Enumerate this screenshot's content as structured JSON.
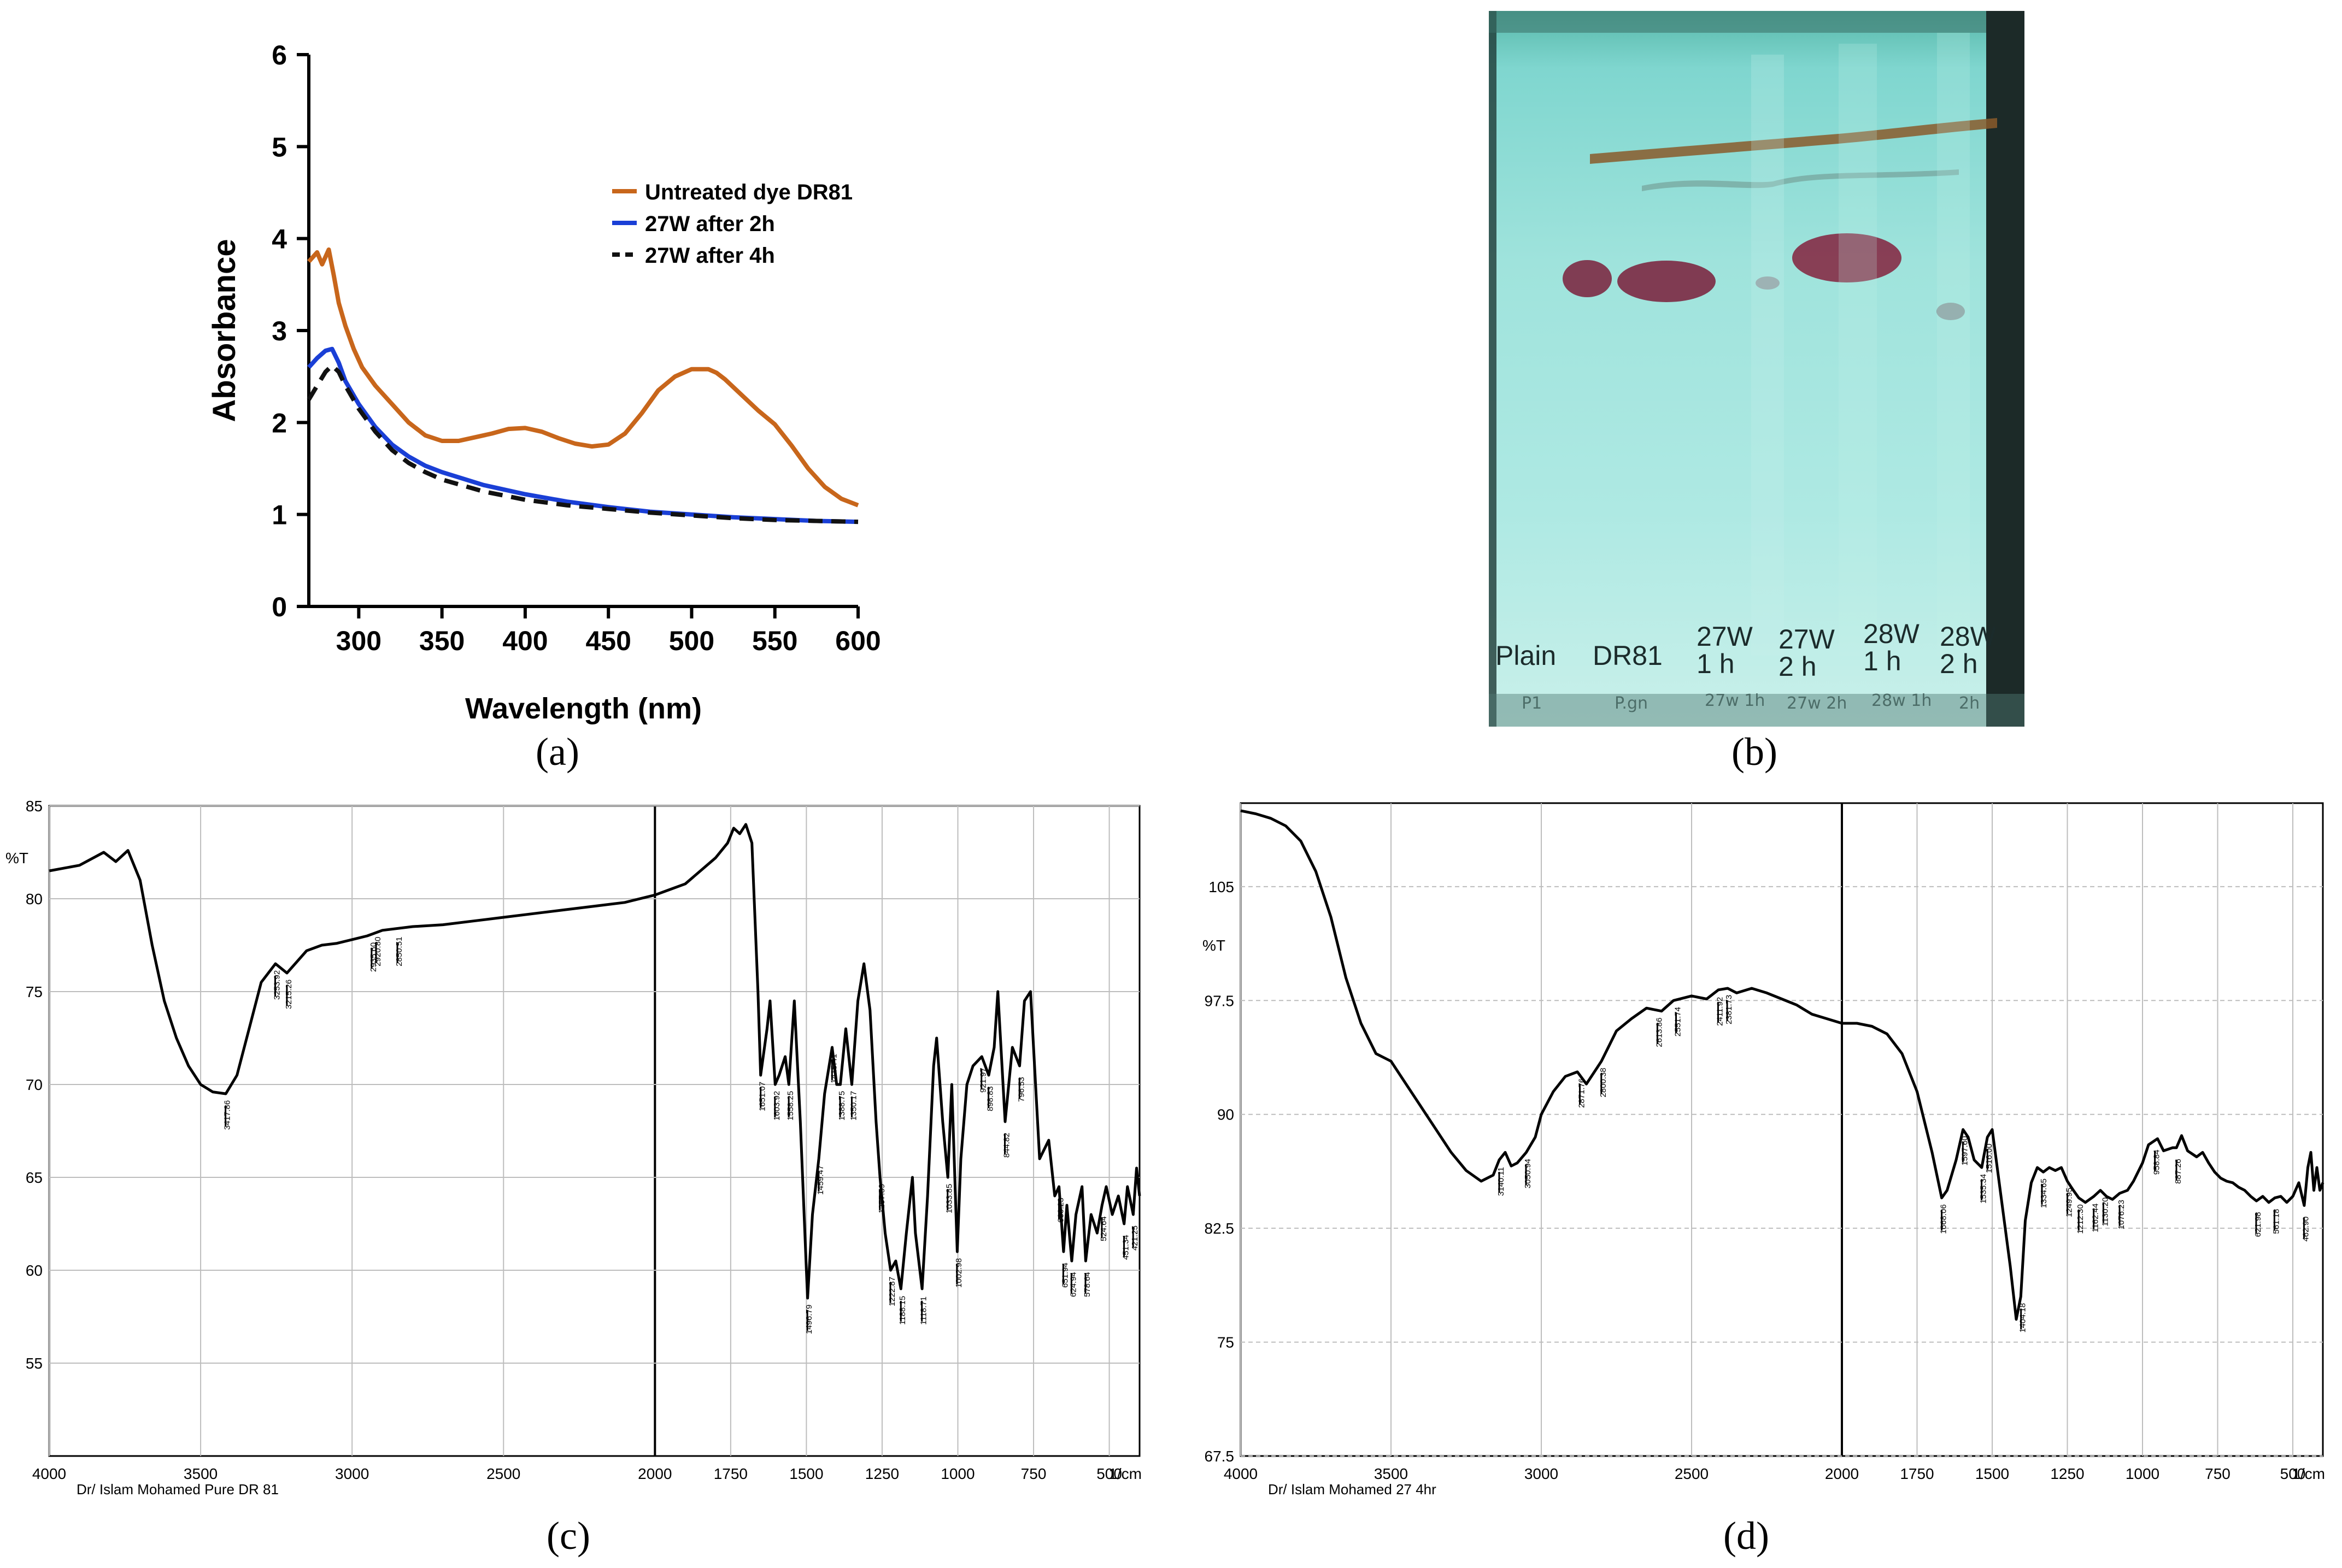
{
  "panel_a": {
    "caption": "(a)",
    "chart_data": {
      "type": "line",
      "xlabel": "Wavelength (nm)",
      "ylabel": "Absorbance",
      "xlim": [
        270,
        600
      ],
      "ylim": [
        0,
        6
      ],
      "xticks": [
        300,
        350,
        400,
        450,
        500,
        550,
        600
      ],
      "yticks": [
        0,
        1,
        2,
        3,
        4,
        5,
        6
      ],
      "legend_position": "top-right",
      "series": [
        {
          "name": "Untreated dye DR81",
          "color": "#c8661b",
          "dash": "solid",
          "x": [
            270,
            275,
            278,
            282,
            285,
            288,
            292,
            297,
            302,
            310,
            320,
            330,
            340,
            350,
            360,
            370,
            380,
            390,
            400,
            410,
            420,
            430,
            440,
            450,
            460,
            470,
            480,
            490,
            500,
            510,
            515,
            520,
            530,
            540,
            550,
            560,
            570,
            580,
            590,
            600
          ],
          "y": [
            3.75,
            3.85,
            3.72,
            3.88,
            3.6,
            3.3,
            3.05,
            2.8,
            2.6,
            2.4,
            2.2,
            2.0,
            1.86,
            1.8,
            1.8,
            1.84,
            1.88,
            1.93,
            1.94,
            1.9,
            1.83,
            1.77,
            1.74,
            1.76,
            1.88,
            2.1,
            2.35,
            2.5,
            2.58,
            2.58,
            2.54,
            2.47,
            2.3,
            2.13,
            1.98,
            1.75,
            1.5,
            1.3,
            1.17,
            1.1
          ]
        },
        {
          "name": "27W after 2h",
          "color": "#1a3fd6",
          "dash": "solid",
          "x": [
            270,
            275,
            280,
            284,
            288,
            292,
            300,
            310,
            320,
            330,
            340,
            350,
            375,
            400,
            425,
            450,
            475,
            500,
            525,
            550,
            575,
            600
          ],
          "y": [
            2.6,
            2.7,
            2.78,
            2.8,
            2.65,
            2.45,
            2.2,
            1.95,
            1.76,
            1.63,
            1.53,
            1.46,
            1.32,
            1.22,
            1.14,
            1.08,
            1.03,
            1.0,
            0.97,
            0.95,
            0.93,
            0.92
          ]
        },
        {
          "name": "27W after 4h",
          "color": "#111111",
          "dash": "dashed",
          "x": [
            270,
            275,
            280,
            284,
            288,
            292,
            300,
            310,
            320,
            330,
            340,
            350,
            375,
            400,
            425,
            450,
            475,
            500,
            525,
            550,
            575,
            600
          ],
          "y": [
            2.25,
            2.4,
            2.55,
            2.62,
            2.55,
            2.4,
            2.15,
            1.9,
            1.7,
            1.56,
            1.46,
            1.38,
            1.25,
            1.16,
            1.1,
            1.06,
            1.02,
            0.99,
            0.96,
            0.94,
            0.93,
            0.92
          ]
        }
      ]
    }
  },
  "panel_b": {
    "caption": "(b)",
    "lanes": [
      {
        "label": "Plain",
        "sub": "",
        "handwriting": "P1"
      },
      {
        "label": "DR81",
        "sub": "",
        "handwriting": "P.gn"
      },
      {
        "label": "27W",
        "sub": "1 h",
        "handwriting": "27w 1h"
      },
      {
        "label": "27W",
        "sub": "2 h",
        "handwriting": "27w 2h"
      },
      {
        "label": "28W",
        "sub": "1 h",
        "handwriting": "28w 1h"
      },
      {
        "label": "28W",
        "sub": "2 h",
        "handwriting": "2h"
      }
    ]
  },
  "panel_c": {
    "caption": "(c)",
    "chart_data": {
      "type": "line",
      "xlabel": "1/cm",
      "ylabel": "%T",
      "footer": "Dr/ Islam  Mohamed    Pure  DR 81",
      "x_reversed": true,
      "xlim": [
        4000,
        400
      ],
      "ylim": [
        50,
        85
      ],
      "xticks": [
        4000,
        3500,
        3000,
        2500,
        2000,
        1750,
        1500,
        1250,
        1000,
        750,
        500
      ],
      "yticks": [
        55,
        60,
        65,
        70,
        75,
        80,
        85
      ],
      "series": [
        {
          "name": "Pure DR 81",
          "x": [
            4000,
            3900,
            3820,
            3780,
            3740,
            3700,
            3660,
            3620,
            3580,
            3540,
            3500,
            3460,
            3417,
            3380,
            3340,
            3300,
            3253,
            3215,
            3150,
            3100,
            3050,
            3000,
            2950,
            2900,
            2800,
            2700,
            2600,
            2500,
            2400,
            2300,
            2200,
            2100,
            2000,
            1950,
            1900,
            1850,
            1800,
            1760,
            1740,
            1720,
            1700,
            1680,
            1660,
            1651,
            1630,
            1620,
            1603,
            1590,
            1570,
            1558,
            1540,
            1520,
            1500,
            1496,
            1480,
            1459,
            1440,
            1415,
            1400,
            1388,
            1370,
            1350,
            1330,
            1310,
            1290,
            1270,
            1257,
            1240,
            1222,
            1205,
            1188,
            1170,
            1150,
            1140,
            1118,
            1100,
            1080,
            1070,
            1050,
            1033,
            1020,
            1002,
            990,
            970,
            950,
            921,
            898,
            880,
            868,
            844,
            820,
            796,
            780,
            760,
            750,
            730,
            700,
            680,
            666,
            651,
            640,
            624,
            610,
            590,
            578,
            560,
            540,
            524,
            510,
            490,
            470,
            451,
            440,
            421,
            410,
            400
          ],
          "y": [
            81.5,
            81.8,
            82.5,
            82.0,
            82.6,
            81.0,
            77.5,
            74.5,
            72.5,
            71.0,
            70.0,
            69.6,
            69.5,
            70.5,
            73.0,
            75.5,
            76.5,
            76.0,
            77.2,
            77.5,
            77.6,
            77.8,
            78.0,
            78.3,
            78.5,
            78.6,
            78.8,
            79.0,
            79.2,
            79.4,
            79.6,
            79.8,
            80.2,
            80.5,
            80.8,
            81.5,
            82.2,
            83.0,
            83.8,
            83.5,
            84.0,
            83.0,
            75.0,
            70.5,
            73.0,
            74.5,
            70.0,
            70.5,
            71.5,
            70.0,
            74.5,
            68.0,
            60.0,
            58.5,
            63.0,
            66.0,
            69.5,
            72.0,
            70.0,
            70.0,
            73.0,
            70.0,
            74.5,
            76.5,
            74.0,
            68.0,
            65.0,
            62.0,
            60.0,
            60.5,
            59.0,
            62.0,
            65.0,
            62.0,
            59.0,
            64.0,
            71.0,
            72.5,
            68.0,
            65.0,
            70.0,
            61.0,
            66.0,
            70.0,
            71.0,
            71.5,
            70.5,
            72.0,
            75.0,
            68.0,
            72.0,
            71.0,
            74.5,
            75.0,
            72.0,
            66.0,
            67.0,
            64.0,
            64.5,
            61.0,
            63.5,
            60.5,
            63.0,
            64.5,
            60.5,
            63.0,
            62.0,
            63.5,
            64.5,
            63.0,
            64.0,
            62.5,
            64.5,
            63.0,
            65.5,
            64.0
          ]
        }
      ],
      "peak_labels": [
        "3417.86",
        "3253.92",
        "3215.26",
        "2935.60",
        "2920.80",
        "2850.51",
        "1651.07",
        "1603.92",
        "1558.25",
        "1496.79",
        "1459.47",
        "1415.41",
        "1388.75",
        "1350.17",
        "1257.59",
        "1222.87",
        "1188.15",
        "1118.71",
        "1033.85",
        "1002.98",
        "921.97",
        "898.83",
        "844.82",
        "796.53",
        "666.23",
        "651.94",
        "624.94",
        "578.64",
        "524.64",
        "451.34",
        "421.25"
      ]
    }
  },
  "panel_d": {
    "caption": "(d)",
    "chart_data": {
      "type": "line",
      "xlabel": "1/cm",
      "ylabel": "%T",
      "footer": "Dr/ Islam  Mohamed    27  4hr",
      "x_reversed": true,
      "xlim": [
        4000,
        400
      ],
      "ylim": [
        67.5,
        110.5
      ],
      "xticks": [
        4000,
        3500,
        3000,
        2500,
        2000,
        1750,
        1500,
        1250,
        1000,
        750,
        500
      ],
      "yticks": [
        67.5,
        75,
        82.5,
        90,
        97.5,
        105
      ],
      "series": [
        {
          "name": "27 4hr",
          "x": [
            4000,
            3950,
            3900,
            3850,
            3800,
            3750,
            3700,
            3650,
            3600,
            3550,
            3500,
            3450,
            3400,
            3350,
            3300,
            3250,
            3200,
            3160,
            3140,
            3120,
            3100,
            3080,
            3050,
            3020,
            3000,
            2960,
            2920,
            2880,
            2850,
            2800,
            2750,
            2700,
            2650,
            2600,
            2560,
            2500,
            2450,
            2411,
            2380,
            2350,
            2300,
            2250,
            2200,
            2150,
            2100,
            2050,
            2000,
            1950,
            1900,
            1850,
            1800,
            1750,
            1700,
            1668,
            1650,
            1620,
            1597,
            1580,
            1560,
            1535,
            1516,
            1500,
            1480,
            1460,
            1440,
            1420,
            1405,
            1390,
            1370,
            1350,
            1330,
            1310,
            1290,
            1270,
            1250,
            1230,
            1212,
            1190,
            1162,
            1140,
            1120,
            1100,
            1076,
            1050,
            1030,
            1000,
            980,
            950,
            930,
            900,
            887,
            870,
            850,
            820,
            800,
            780,
            760,
            740,
            720,
            700,
            680,
            660,
            640,
            621,
            600,
            580,
            560,
            540,
            520,
            500,
            480,
            462,
            450,
            440,
            430,
            420,
            410,
            400
          ],
          "y": [
            110.0,
            109.8,
            109.5,
            109.0,
            108.0,
            106.0,
            103.0,
            99.0,
            96.0,
            94.0,
            93.5,
            92.0,
            90.5,
            89.0,
            87.5,
            86.3,
            85.6,
            86.0,
            87.0,
            87.5,
            86.6,
            86.8,
            87.5,
            88.5,
            90.0,
            91.5,
            92.5,
            92.8,
            92.0,
            93.5,
            95.5,
            96.3,
            97.0,
            96.8,
            97.5,
            97.8,
            97.6,
            98.2,
            98.3,
            98.0,
            98.3,
            98.0,
            97.6,
            97.2,
            96.6,
            96.3,
            96.0,
            96.0,
            95.8,
            95.3,
            94.0,
            91.5,
            87.5,
            84.5,
            85.0,
            87.0,
            89.0,
            88.5,
            87.0,
            86.5,
            88.5,
            89.0,
            86.0,
            83.0,
            80.0,
            76.5,
            78.0,
            83.0,
            85.5,
            86.5,
            86.2,
            86.5,
            86.3,
            86.5,
            85.6,
            85.0,
            84.5,
            84.2,
            84.6,
            85.0,
            84.6,
            84.4,
            84.8,
            85.0,
            85.6,
            86.8,
            88.0,
            88.4,
            87.6,
            87.8,
            87.8,
            88.6,
            87.6,
            87.2,
            87.5,
            86.8,
            86.2,
            85.8,
            85.6,
            85.5,
            85.2,
            85.0,
            84.6,
            84.3,
            84.6,
            84.2,
            84.5,
            84.6,
            84.2,
            84.6,
            85.5,
            84.0,
            86.5,
            87.5,
            85.0,
            86.5,
            85.0,
            85.5
          ]
        }
      ],
      "peak_labels": [
        "3140.11",
        "3050.94",
        "2871.76",
        "2800.38",
        "2613.86",
        "2551.74",
        "2411.92",
        "2381.73",
        "1668.06",
        "1597.60",
        "1535.34",
        "1516.00",
        "1404.18",
        "1334.65",
        "1249.95",
        "1212.30",
        "1162.44",
        "1130.20",
        "1076.23",
        "958.84",
        "887.26",
        "621.98",
        "561.18",
        "462.90"
      ]
    }
  }
}
